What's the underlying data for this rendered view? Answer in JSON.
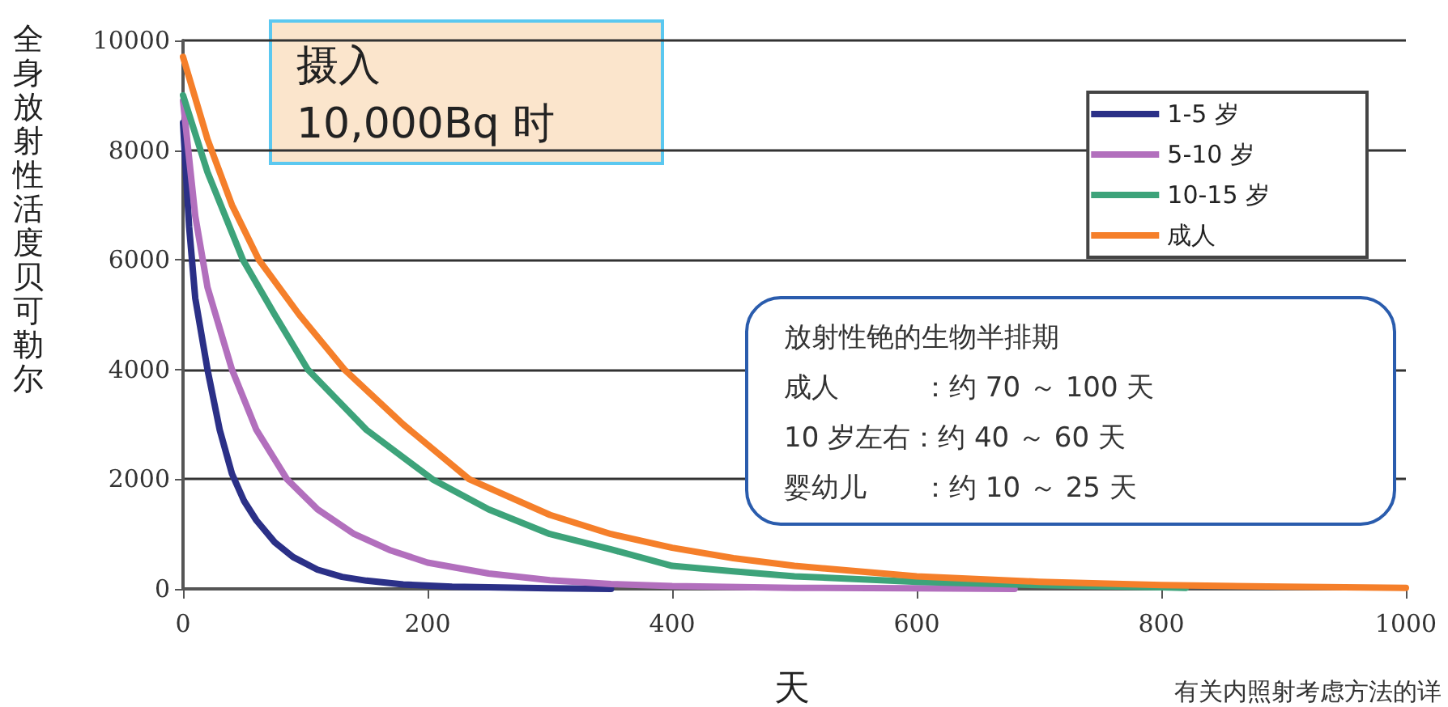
{
  "chart_data": {
    "type": "line",
    "title": "摄入\n10,000Bq 时",
    "xlabel": "天",
    "ylabel": "全身放射性活度贝可勒尔",
    "annotations": [
      "放射性铯的生物半排期",
      "成人　　　：约 70 ～ 100 天",
      "10 岁左右：约 40 ～ 60 天",
      "婴幼儿　　：约 10 ～ 25 天",
      "有关内照射考虑方法的详"
    ],
    "series": [
      {
        "name": "1-5 岁",
        "color": "#2b3087",
        "x": [
          0,
          5,
          10,
          20,
          30,
          40,
          50,
          60,
          75,
          90,
          110,
          130,
          150,
          180,
          220,
          300,
          350
        ],
        "values": [
          8500,
          6600,
          5300,
          4000,
          2900,
          2100,
          1600,
          1250,
          850,
          580,
          350,
          220,
          150,
          80,
          40,
          10,
          0
        ]
      },
      {
        "name": "5-10 岁",
        "color": "#b26fbd",
        "x": [
          0,
          10,
          20,
          40,
          60,
          85,
          110,
          140,
          170,
          200,
          250,
          300,
          350,
          400,
          500,
          600,
          680
        ],
        "values": [
          8900,
          6800,
          5500,
          4000,
          2900,
          2000,
          1450,
          1000,
          700,
          480,
          280,
          160,
          90,
          50,
          20,
          10,
          0
        ]
      },
      {
        "name": "10-15 岁",
        "color": "#3da37a",
        "x": [
          0,
          20,
          49,
          75,
          102,
          150,
          204,
          250,
          300,
          350,
          400,
          450,
          500,
          600,
          700,
          800,
          820
        ],
        "values": [
          9000,
          7600,
          6000,
          5000,
          4000,
          2900,
          2000,
          1450,
          1000,
          720,
          420,
          320,
          230,
          130,
          70,
          30,
          20
        ]
      },
      {
        "name": "成人",
        "color": "#f57f2a",
        "x": [
          0,
          20,
          40,
          62,
          95,
          132,
          180,
          234,
          300,
          350,
          400,
          450,
          500,
          600,
          700,
          800,
          900,
          1000
        ],
        "values": [
          9700,
          8200,
          7000,
          6000,
          5000,
          4000,
          3000,
          2000,
          1350,
          1000,
          750,
          560,
          420,
          230,
          130,
          70,
          40,
          20
        ]
      }
    ],
    "xlim": [
      0,
      1000
    ],
    "xticks": [
      0,
      200,
      400,
      600,
      800,
      1000
    ],
    "ylim": [
      0,
      10000
    ],
    "yticks": [
      0,
      2000,
      4000,
      6000,
      8000,
      10000
    ],
    "grid": "y",
    "legend": "top right",
    "marker": "none",
    "line_style": "solid"
  }
}
